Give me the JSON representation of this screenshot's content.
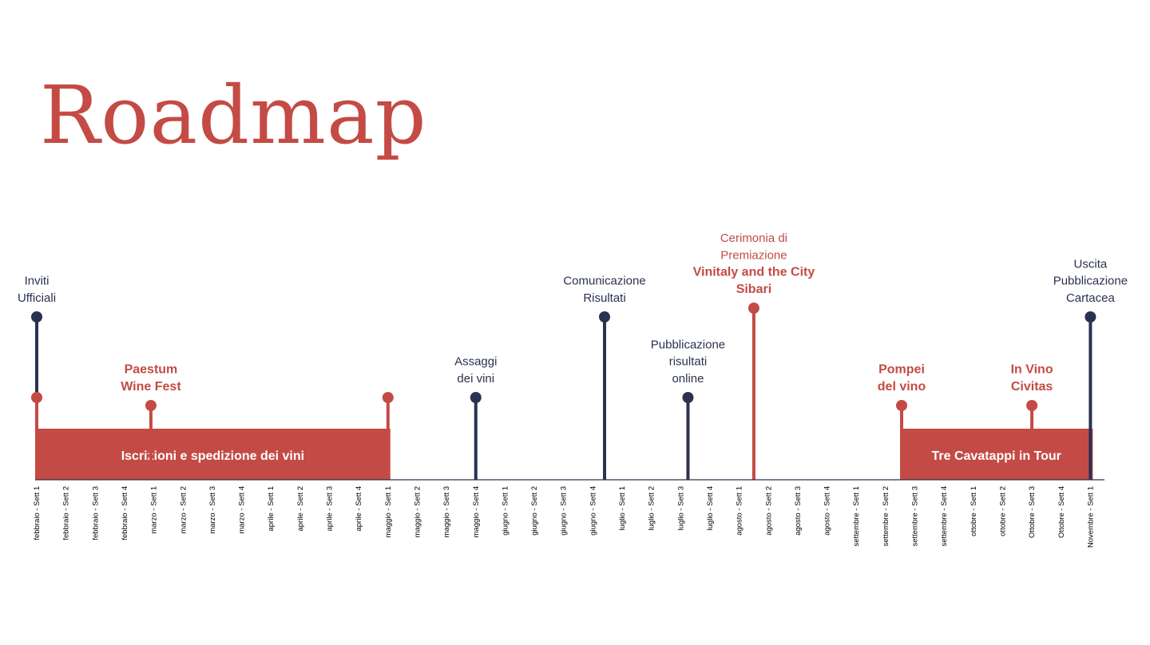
{
  "title": "Roadmap",
  "colors": {
    "red": "#c44b45",
    "navy": "#2b3150",
    "axis": "#2b3150"
  },
  "weeks": [
    "febbraio - Sett 1",
    "febbraio - Sett 2",
    "febbraio - Sett 3",
    "febbraio - Sett 4",
    "marzo - Sett 1",
    "marzo - Sett 2",
    "marzo - Sett 3",
    "marzo - Sett 4",
    "aprile - Sett 1",
    "aprile - Sett 2",
    "aprile - Sett 3",
    "aprile - Sett 4",
    "maggio - Sett 1",
    "maggio - Sett 2",
    "maggio - Sett 3",
    "maggio - Sett 4",
    "giugno - Sett 1",
    "giugno - Sett 2",
    "giugno - Sett 3",
    "giugno - Sett 4",
    "luglio - Sett 1",
    "luglio - Sett 2",
    "luglio - Sett 3",
    "luglio - Sett 4",
    "agosto - Sett 1",
    "agosto - Sett 2",
    "agosto - Sett 3",
    "agosto - Sett 4",
    "settembre - Sett 1",
    "settembre - Sett 2",
    "settembre - Sett 3",
    "settembre - Sett 4",
    "ottobre - Sett 1",
    "ottobre - Sett 2",
    "Ottobre - Sett 3",
    "Ottobre - Sett 4",
    "Novembre - Sett 1"
  ],
  "periods": [
    {
      "label": "Iscrizioni e spedizione dei vini",
      "start": 0,
      "end": 12
    },
    {
      "label": "Tre Cavatappi in Tour",
      "start": 29.55,
      "end": 36
    }
  ],
  "milestones": [
    {
      "week": 0,
      "level": "high",
      "color": "navy",
      "lines": [
        {
          "text": "Inviti",
          "style": "thin"
        },
        {
          "text": "Ufficiali",
          "style": "thin"
        }
      ]
    },
    {
      "week": 0,
      "level": "low",
      "color": "red",
      "lines": []
    },
    {
      "week": 3.9,
      "level": "small",
      "color": "red",
      "lines": [
        {
          "text": "Paestum",
          "style": "bold-red"
        },
        {
          "text": "Wine Fest",
          "style": "bold-red"
        }
      ]
    },
    {
      "week": 12,
      "level": "low",
      "color": "red",
      "lines": []
    },
    {
      "week": 15,
      "level": "low",
      "color": "navy",
      "lines": [
        {
          "text": "Assaggi",
          "style": "thin"
        },
        {
          "text": "dei vini",
          "style": "thin"
        }
      ]
    },
    {
      "week": 19.4,
      "level": "high",
      "color": "navy",
      "lines": [
        {
          "text": "Comunicazione",
          "style": "thin"
        },
        {
          "text": "Risultati",
          "style": "thin"
        }
      ]
    },
    {
      "week": 22.25,
      "level": "low",
      "color": "navy",
      "lines": [
        {
          "text": "Pubblicazione",
          "style": "thin"
        },
        {
          "text": "risultati",
          "style": "thin"
        },
        {
          "text": "online",
          "style": "thin"
        }
      ]
    },
    {
      "week": 24.5,
      "level": "top",
      "color": "red",
      "lines": [
        {
          "text": "Cerimonia di",
          "style": "thin-red"
        },
        {
          "text": "Premiazione",
          "style": "thin-red"
        },
        {
          "text": "Vinitaly and the City",
          "style": "bold-red"
        },
        {
          "text": "Sibari",
          "style": "bold-red"
        }
      ]
    },
    {
      "week": 29.55,
      "level": "small",
      "color": "red",
      "lines": [
        {
          "text": "Pompei",
          "style": "bold-red"
        },
        {
          "text": "del vino",
          "style": "bold-red"
        }
      ]
    },
    {
      "week": 34,
      "level": "small",
      "color": "red",
      "lines": [
        {
          "text": "In Vino",
          "style": "bold-red"
        },
        {
          "text": "Civitas",
          "style": "bold-red"
        }
      ]
    },
    {
      "week": 36,
      "level": "high",
      "color": "navy",
      "lines": [
        {
          "text": "Uscita",
          "style": "thin"
        },
        {
          "text": "Pubblicazione",
          "style": "thin"
        },
        {
          "text": "Cartacea",
          "style": "thin"
        }
      ]
    }
  ]
}
